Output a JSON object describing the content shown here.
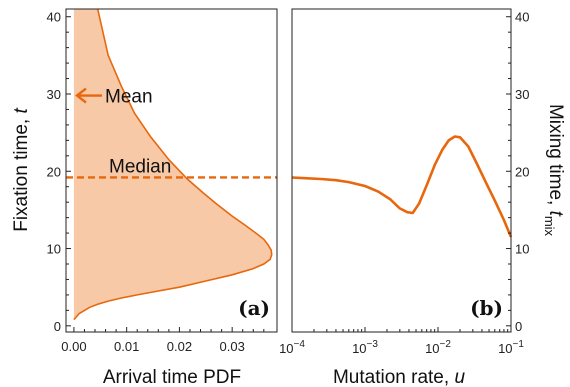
{
  "chart_data": [
    {
      "panel_label": "(a)",
      "type": "area",
      "xlabel": "Arrival time PDF",
      "ylabel_main": "Fixation time, ",
      "ylabel_var": "t",
      "xlim": [
        -0.0015,
        0.0385
      ],
      "ylim": [
        -0.8,
        41
      ],
      "xticks": [
        "0.00",
        "0.01",
        "0.02",
        "0.03"
      ],
      "xtick_values": [
        0,
        0.01,
        0.02,
        0.03
      ],
      "yticks": [
        "0",
        "10",
        "20",
        "30",
        "40"
      ],
      "ytick_values": [
        0,
        10,
        20,
        30,
        40
      ],
      "fill_color": "#f7c9a6",
      "line_color": "#e8670d",
      "curve": {
        "pdf": [
          0,
          0.001,
          0.002,
          0.003,
          0.0045,
          0.0065,
          0.009,
          0.012,
          0.016,
          0.02,
          0.025,
          0.03,
          0.034,
          0.036,
          0.0372,
          0.0375,
          0.0374,
          0.0368,
          0.036,
          0.0345,
          0.0325,
          0.03,
          0.027,
          0.0245,
          0.0215,
          0.018,
          0.0145,
          0.0115,
          0.009,
          0.0065,
          0.0045
        ],
        "t": [
          0.8,
          1.6,
          2.0,
          2.4,
          2.8,
          3.2,
          3.6,
          4.0,
          4.5,
          5.0,
          5.8,
          6.6,
          7.4,
          8.0,
          8.6,
          9.2,
          9.8,
          10.5,
          11.2,
          12.0,
          13.0,
          14.2,
          15.8,
          17.2,
          19.0,
          21.5,
          24.5,
          27.5,
          31.0,
          35.0,
          41.0
        ]
      },
      "annotations": [
        {
          "label": "Mean",
          "value_t": 29.8
        },
        {
          "label": "Median",
          "value_t": 19.2
        }
      ]
    },
    {
      "panel_label": "(b)",
      "type": "line",
      "xlabel_main": "Mutation rate, ",
      "xlabel_var": "u",
      "ylabel_main": "Mixing time, ",
      "ylabel_var": "t",
      "ylabel_sub": "mix",
      "x_scale": "log",
      "xlim": [
        0.0001,
        0.1
      ],
      "ylim": [
        -0.8,
        41
      ],
      "xticks": [
        {
          "base": "10",
          "exp": "−4",
          "value": 0.0001
        },
        {
          "base": "10",
          "exp": "−3",
          "value": 0.001
        },
        {
          "base": "10",
          "exp": "−2",
          "value": 0.01
        },
        {
          "base": "10",
          "exp": "−1",
          "value": 0.1
        }
      ],
      "yticks": [
        "0",
        "10",
        "20",
        "30",
        "40"
      ],
      "ytick_values": [
        0,
        10,
        20,
        30,
        40
      ],
      "line_color": "#e8670d",
      "series": [
        {
          "x": [
            0.0001,
            0.00015,
            0.00025,
            0.0004,
            0.0006,
            0.001,
            0.0015,
            0.0022,
            0.003,
            0.0038,
            0.0045,
            0.0055,
            0.007,
            0.009,
            0.0115,
            0.014,
            0.017,
            0.02,
            0.026,
            0.034,
            0.045,
            0.06,
            0.08,
            0.1
          ],
          "y": [
            19.2,
            19.1,
            19.0,
            18.85,
            18.6,
            18.1,
            17.4,
            16.4,
            15.2,
            14.7,
            14.6,
            15.8,
            18.2,
            20.8,
            22.8,
            24.0,
            24.5,
            24.4,
            23.2,
            21.0,
            18.6,
            16.2,
            13.7,
            11.5
          ]
        }
      ]
    }
  ]
}
